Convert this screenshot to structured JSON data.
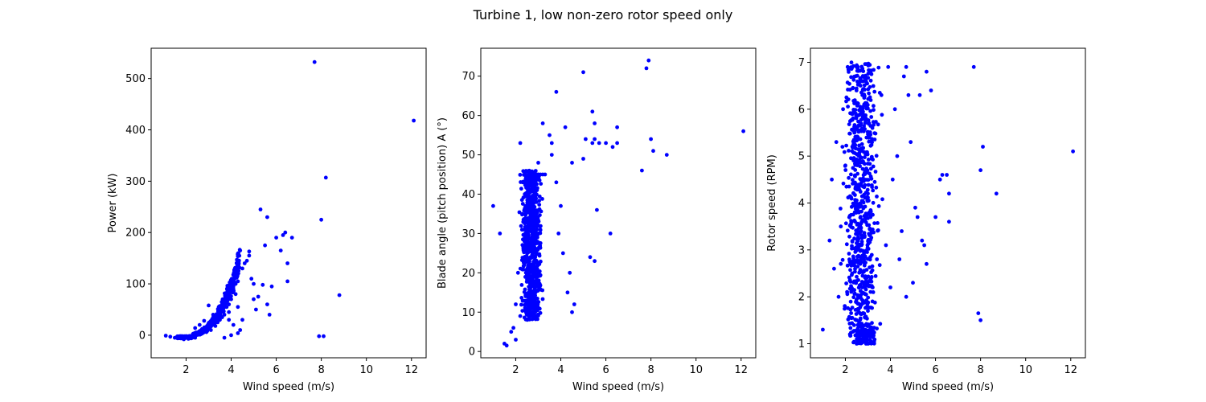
{
  "figure": {
    "suptitle": "Turbine 1, low non-zero rotor speed only"
  },
  "chart_data": [
    {
      "type": "scatter",
      "xlabel": "Wind speed (m/s)",
      "ylabel": "Power (kW)",
      "xlim": [
        0.45,
        12.65
      ],
      "ylim": [
        -44,
        559
      ],
      "xticks": [
        2,
        4,
        6,
        8,
        10,
        12
      ],
      "yticks": [
        0,
        100,
        200,
        300,
        400,
        500
      ],
      "color": "#0000ff",
      "grid": false,
      "cluster_description": "dense cluster of ~800 points between 1.1 and 4.3 m/s, power from -10 to about 120 kW, rising with wind speed",
      "points": [
        [
          1.1,
          -1
        ],
        [
          1.3,
          -3
        ],
        [
          1.5,
          -5
        ],
        [
          1.6,
          -4
        ],
        [
          1.7,
          -6
        ],
        [
          1.8,
          -3
        ],
        [
          1.9,
          -8
        ],
        [
          2.0,
          -2
        ],
        [
          2.1,
          -7
        ],
        [
          2.2,
          -4
        ],
        [
          2.3,
          2
        ],
        [
          2.4,
          -5
        ],
        [
          2.5,
          5
        ],
        [
          2.6,
          8
        ],
        [
          2.7,
          3
        ],
        [
          2.8,
          12
        ],
        [
          2.9,
          6
        ],
        [
          3.0,
          15
        ],
        [
          3.1,
          10
        ],
        [
          3.2,
          20
        ],
        [
          3.3,
          18
        ],
        [
          3.4,
          25
        ],
        [
          3.5,
          30
        ],
        [
          3.6,
          35
        ],
        [
          3.7,
          40
        ],
        [
          3.8,
          55
        ],
        [
          3.9,
          60
        ],
        [
          4.0,
          70
        ],
        [
          4.1,
          90
        ],
        [
          4.2,
          100
        ],
        [
          4.2,
          118
        ],
        [
          4.3,
          105
        ],
        [
          4.2,
          80
        ],
        [
          3.9,
          45
        ],
        [
          3.5,
          48
        ],
        [
          3.2,
          40
        ],
        [
          3.0,
          58
        ],
        [
          2.8,
          28
        ],
        [
          2.6,
          20
        ],
        [
          2.4,
          14
        ],
        [
          4.0,
          0
        ],
        [
          3.7,
          -5
        ],
        [
          4.3,
          4
        ],
        [
          4.4,
          10
        ],
        [
          4.1,
          20
        ],
        [
          3.9,
          30
        ],
        [
          4.5,
          30
        ],
        [
          4.3,
          55
        ],
        [
          4.4,
          165
        ],
        [
          4.5,
          130
        ],
        [
          4.6,
          140
        ],
        [
          4.7,
          145
        ],
        [
          4.8,
          155
        ],
        [
          4.8,
          163
        ],
        [
          4.9,
          110
        ],
        [
          5.0,
          100
        ],
        [
          5.0,
          70
        ],
        [
          5.1,
          50
        ],
        [
          5.2,
          75
        ],
        [
          5.3,
          245
        ],
        [
          5.4,
          98
        ],
        [
          5.5,
          175
        ],
        [
          5.6,
          230
        ],
        [
          5.6,
          60
        ],
        [
          5.7,
          40
        ],
        [
          5.8,
          95
        ],
        [
          6.0,
          190
        ],
        [
          6.2,
          165
        ],
        [
          6.3,
          195
        ],
        [
          6.4,
          200
        ],
        [
          6.5,
          140
        ],
        [
          6.5,
          105
        ],
        [
          6.7,
          190
        ],
        [
          7.7,
          532
        ],
        [
          7.9,
          -2
        ],
        [
          8.0,
          225
        ],
        [
          8.1,
          -2
        ],
        [
          8.2,
          307
        ],
        [
          8.8,
          78
        ],
        [
          12.1,
          418
        ]
      ]
    },
    {
      "type": "scatter",
      "xlabel": "Wind speed (m/s)",
      "ylabel": "Blade angle (pitch position) A (°)",
      "xlim": [
        0.45,
        12.65
      ],
      "ylim": [
        -1.6,
        77.1
      ],
      "xticks": [
        2,
        4,
        6,
        8,
        10,
        12
      ],
      "yticks": [
        0,
        10,
        20,
        30,
        40,
        50,
        60,
        70
      ],
      "color": "#0000ff",
      "grid": false,
      "cluster_description": "dense cluster of ~800 points between 1.0 and 4.5 m/s, blade angle from 2 to 46 degrees, horizontal line of points at about 45 degrees from 2.6 to 3.3 m/s",
      "points": [
        [
          1.0,
          37
        ],
        [
          1.3,
          30
        ],
        [
          1.5,
          2
        ],
        [
          1.6,
          1.5
        ],
        [
          1.8,
          5
        ],
        [
          1.9,
          6
        ],
        [
          2.0,
          3
        ],
        [
          2.2,
          9
        ],
        [
          2.0,
          12
        ],
        [
          2.1,
          20
        ],
        [
          2.2,
          53
        ],
        [
          2.3,
          35
        ],
        [
          2.4,
          40
        ],
        [
          2.5,
          44
        ],
        [
          2.6,
          45
        ],
        [
          2.7,
          45
        ],
        [
          2.8,
          45
        ],
        [
          2.9,
          45
        ],
        [
          3.0,
          45
        ],
        [
          3.1,
          45
        ],
        [
          3.2,
          45
        ],
        [
          3.3,
          45
        ],
        [
          3.0,
          30
        ],
        [
          2.8,
          22
        ],
        [
          2.6,
          15
        ],
        [
          3.2,
          58
        ],
        [
          3.5,
          55
        ],
        [
          3.6,
          53
        ],
        [
          3.6,
          50
        ],
        [
          3.0,
          48
        ],
        [
          3.8,
          43
        ],
        [
          4.0,
          37
        ],
        [
          3.9,
          30
        ],
        [
          4.1,
          25
        ],
        [
          4.2,
          57
        ],
        [
          4.5,
          48
        ],
        [
          4.3,
          15
        ],
        [
          4.5,
          10
        ],
        [
          4.6,
          12
        ],
        [
          4.4,
          20
        ],
        [
          3.8,
          66
        ],
        [
          5.0,
          71
        ],
        [
          5.1,
          54
        ],
        [
          5.0,
          49
        ],
        [
          5.3,
          24
        ],
        [
          5.4,
          61
        ],
        [
          5.4,
          53
        ],
        [
          5.5,
          58
        ],
        [
          5.5,
          54
        ],
        [
          5.6,
          36
        ],
        [
          5.5,
          23
        ],
        [
          5.7,
          53
        ],
        [
          6.0,
          53
        ],
        [
          6.2,
          30
        ],
        [
          6.3,
          52
        ],
        [
          6.5,
          57
        ],
        [
          6.5,
          53
        ],
        [
          7.6,
          46
        ],
        [
          7.8,
          72
        ],
        [
          7.9,
          74
        ],
        [
          8.0,
          54
        ],
        [
          8.1,
          51
        ],
        [
          8.7,
          50
        ],
        [
          12.1,
          56
        ]
      ]
    },
    {
      "type": "scatter",
      "xlabel": "Wind speed (m/s)",
      "ylabel": "Rotor speed (RPM)",
      "xlim": [
        0.45,
        12.65
      ],
      "ylim": [
        0.7,
        7.3
      ],
      "xticks": [
        2,
        4,
        6,
        8,
        10,
        12
      ],
      "yticks": [
        1,
        2,
        3,
        4,
        5,
        6,
        7
      ],
      "color": "#0000ff",
      "grid": false,
      "cluster_description": "dense vertical band of ~800 points between 1.5 and 4.3 m/s spanning 1.0 to 7.0 RPM, densest at 2.5-3.2 m/s near 1.1 RPM",
      "points": [
        [
          1.0,
          1.3
        ],
        [
          1.3,
          3.2
        ],
        [
          1.4,
          4.5
        ],
        [
          1.5,
          2.6
        ],
        [
          1.6,
          5.3
        ],
        [
          1.7,
          2.0
        ],
        [
          1.8,
          3.5
        ],
        [
          1.9,
          6.0
        ],
        [
          2.0,
          4.8
        ],
        [
          2.1,
          6.9
        ],
        [
          2.2,
          1.2
        ],
        [
          2.3,
          2.5
        ],
        [
          2.4,
          5.5
        ],
        [
          2.5,
          1.0
        ],
        [
          2.6,
          1.1
        ],
        [
          2.7,
          1.05
        ],
        [
          2.8,
          1.2
        ],
        [
          2.9,
          1.1
        ],
        [
          3.0,
          1.0
        ],
        [
          3.1,
          1.15
        ],
        [
          2.6,
          3.8
        ],
        [
          2.8,
          6.6
        ],
        [
          3.0,
          4.2
        ],
        [
          3.2,
          5.6
        ],
        [
          3.4,
          2.8
        ],
        [
          3.6,
          6.3
        ],
        [
          3.8,
          3.1
        ],
        [
          4.0,
          2.2
        ],
        [
          4.1,
          4.5
        ],
        [
          4.2,
          6.0
        ],
        [
          3.9,
          6.9
        ],
        [
          4.3,
          5.0
        ],
        [
          4.4,
          2.8
        ],
        [
          4.5,
          3.4
        ],
        [
          4.6,
          6.7
        ],
        [
          4.7,
          2.0
        ],
        [
          4.7,
          6.9
        ],
        [
          4.8,
          6.3
        ],
        [
          4.9,
          5.3
        ],
        [
          5.0,
          2.3
        ],
        [
          5.1,
          3.9
        ],
        [
          5.2,
          3.7
        ],
        [
          5.3,
          6.3
        ],
        [
          5.4,
          3.2
        ],
        [
          5.5,
          3.1
        ],
        [
          5.6,
          2.7
        ],
        [
          5.6,
          6.8
        ],
        [
          5.8,
          6.4
        ],
        [
          6.0,
          3.7
        ],
        [
          6.2,
          4.5
        ],
        [
          6.3,
          4.6
        ],
        [
          6.5,
          4.6
        ],
        [
          6.6,
          3.6
        ],
        [
          6.6,
          4.2
        ],
        [
          7.7,
          6.9
        ],
        [
          7.9,
          1.65
        ],
        [
          8.0,
          4.7
        ],
        [
          8.0,
          1.5
        ],
        [
          8.1,
          5.2
        ],
        [
          8.7,
          4.2
        ],
        [
          12.1,
          5.1
        ]
      ]
    }
  ]
}
